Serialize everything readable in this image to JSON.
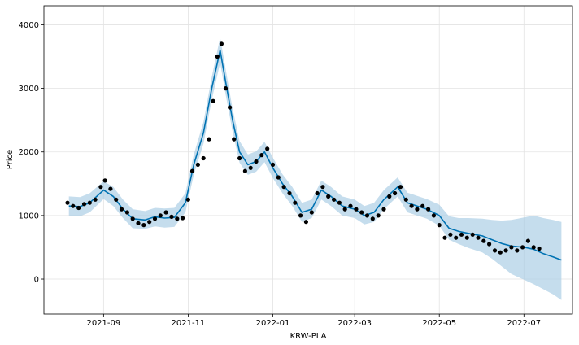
{
  "chart_data": {
    "type": "line",
    "xlabel": "KRW-PLA",
    "ylabel": "Price",
    "x_range": [
      "2021-07-20",
      "2022-08-05"
    ],
    "ylim": [
      -550,
      4300
    ],
    "x_ticks": [
      {
        "date": "2021-09-01",
        "label": "2021-09"
      },
      {
        "date": "2021-11-01",
        "label": "2021-11"
      },
      {
        "date": "2022-01-01",
        "label": "2022-01"
      },
      {
        "date": "2022-03-01",
        "label": "2022-03"
      },
      {
        "date": "2022-05-01",
        "label": "2022-05"
      },
      {
        "date": "2022-07-01",
        "label": "2022-07"
      }
    ],
    "y_ticks": [
      0,
      1000,
      2000,
      3000,
      4000
    ],
    "grid": true,
    "colors": {
      "observed": "#000000",
      "forecast": "#0072b2",
      "interval": "#a6cbe3"
    },
    "series": [
      {
        "kind": "forecast",
        "x": [
          "2021-08-07",
          "2021-08-15",
          "2021-08-22",
          "2021-09-01",
          "2021-09-08",
          "2021-09-15",
          "2021-09-22",
          "2021-10-01",
          "2021-10-08",
          "2021-10-15",
          "2021-10-22",
          "2021-10-30",
          "2021-11-05",
          "2021-11-12",
          "2021-11-18",
          "2021-11-24",
          "2021-11-28",
          "2021-12-03",
          "2021-12-08",
          "2021-12-14",
          "2021-12-20",
          "2021-12-26",
          "2022-01-01",
          "2022-01-08",
          "2022-01-15",
          "2022-01-22",
          "2022-01-29",
          "2022-02-05",
          "2022-02-12",
          "2022-02-20",
          "2022-03-01",
          "2022-03-08",
          "2022-03-15",
          "2022-03-22",
          "2022-04-01",
          "2022-04-08",
          "2022-04-15",
          "2022-04-22",
          "2022-05-01",
          "2022-05-08",
          "2022-05-15",
          "2022-05-22",
          "2022-06-01",
          "2022-06-08",
          "2022-06-15",
          "2022-06-22",
          "2022-07-01",
          "2022-07-08",
          "2022-07-15",
          "2022-07-22",
          "2022-07-28"
        ],
        "y": [
          1150,
          1140,
          1200,
          1400,
          1300,
          1100,
          950,
          930,
          980,
          960,
          970,
          1200,
          1800,
          2300,
          3000,
          3600,
          3100,
          2500,
          2000,
          1800,
          1850,
          2000,
          1750,
          1500,
          1300,
          1050,
          1100,
          1400,
          1300,
          1150,
          1100,
          1000,
          1050,
          1250,
          1450,
          1200,
          1150,
          1100,
          1000,
          800,
          750,
          720,
          680,
          620,
          560,
          520,
          500,
          470,
          400,
          350,
          300
        ]
      },
      {
        "kind": "uncertainty-interval",
        "x": [
          "2021-08-07",
          "2021-08-15",
          "2021-08-22",
          "2021-09-01",
          "2021-09-08",
          "2021-09-15",
          "2021-09-22",
          "2021-10-01",
          "2021-10-08",
          "2021-10-15",
          "2021-10-22",
          "2021-10-30",
          "2021-11-05",
          "2021-11-12",
          "2021-11-18",
          "2021-11-24",
          "2021-11-28",
          "2021-12-03",
          "2021-12-08",
          "2021-12-14",
          "2021-12-20",
          "2021-12-26",
          "2022-01-01",
          "2022-01-08",
          "2022-01-15",
          "2022-01-22",
          "2022-01-29",
          "2022-02-05",
          "2022-02-12",
          "2022-02-20",
          "2022-03-01",
          "2022-03-08",
          "2022-03-15",
          "2022-03-22",
          "2022-04-01",
          "2022-04-08",
          "2022-04-15",
          "2022-04-22",
          "2022-05-01",
          "2022-05-08",
          "2022-05-15",
          "2022-05-22",
          "2022-06-01",
          "2022-06-08",
          "2022-06-15",
          "2022-06-22",
          "2022-07-01",
          "2022-07-08",
          "2022-07-15",
          "2022-07-22",
          "2022-07-28"
        ],
        "lower": [
          1000,
          990,
          1050,
          1260,
          1150,
          960,
          800,
          790,
          830,
          810,
          820,
          1050,
          1640,
          2130,
          2820,
          3400,
          2900,
          2320,
          1830,
          1640,
          1690,
          1840,
          1590,
          1350,
          1150,
          900,
          960,
          1250,
          1150,
          1000,
          960,
          860,
          900,
          1100,
          1300,
          1050,
          1000,
          950,
          840,
          620,
          550,
          490,
          420,
          320,
          200,
          80,
          -10,
          -80,
          -160,
          -240,
          -330
        ],
        "upper": [
          1300,
          1290,
          1350,
          1540,
          1450,
          1250,
          1100,
          1070,
          1120,
          1110,
          1120,
          1350,
          1960,
          2470,
          3180,
          3800,
          3300,
          2680,
          2170,
          1960,
          2010,
          2160,
          1910,
          1650,
          1450,
          1200,
          1250,
          1550,
          1450,
          1300,
          1250,
          1150,
          1200,
          1400,
          1600,
          1360,
          1310,
          1260,
          1170,
          990,
          960,
          960,
          950,
          930,
          920,
          930,
          970,
          1000,
          960,
          930,
          900
        ]
      },
      {
        "kind": "observed",
        "x": [
          "2021-08-06",
          "2021-08-10",
          "2021-08-14",
          "2021-08-18",
          "2021-08-22",
          "2021-08-26",
          "2021-08-30",
          "2021-09-02",
          "2021-09-06",
          "2021-09-10",
          "2021-09-14",
          "2021-09-18",
          "2021-09-22",
          "2021-09-26",
          "2021-09-30",
          "2021-10-04",
          "2021-10-08",
          "2021-10-12",
          "2021-10-16",
          "2021-10-20",
          "2021-10-24",
          "2021-10-28",
          "2021-11-01",
          "2021-11-04",
          "2021-11-08",
          "2021-11-12",
          "2021-11-16",
          "2021-11-19",
          "2021-11-22",
          "2021-11-25",
          "2021-11-28",
          "2021-12-01",
          "2021-12-04",
          "2021-12-08",
          "2021-12-12",
          "2021-12-16",
          "2021-12-20",
          "2021-12-24",
          "2021-12-28",
          "2022-01-01",
          "2022-01-05",
          "2022-01-09",
          "2022-01-13",
          "2022-01-17",
          "2022-01-21",
          "2022-01-25",
          "2022-01-29",
          "2022-02-02",
          "2022-02-06",
          "2022-02-10",
          "2022-02-14",
          "2022-02-18",
          "2022-02-22",
          "2022-02-26",
          "2022-03-02",
          "2022-03-06",
          "2022-03-10",
          "2022-03-14",
          "2022-03-18",
          "2022-03-22",
          "2022-03-26",
          "2022-03-30",
          "2022-04-03",
          "2022-04-07",
          "2022-04-11",
          "2022-04-15",
          "2022-04-19",
          "2022-04-23",
          "2022-04-27",
          "2022-05-01",
          "2022-05-05",
          "2022-05-09",
          "2022-05-13",
          "2022-05-17",
          "2022-05-21",
          "2022-05-25",
          "2022-05-29",
          "2022-06-02",
          "2022-06-06",
          "2022-06-10",
          "2022-06-14",
          "2022-06-18",
          "2022-06-22",
          "2022-06-26",
          "2022-06-30",
          "2022-07-04",
          "2022-07-08",
          "2022-07-12"
        ],
        "y": [
          1200,
          1150,
          1120,
          1180,
          1200,
          1250,
          1450,
          1550,
          1420,
          1250,
          1100,
          1050,
          950,
          880,
          850,
          900,
          950,
          1000,
          1050,
          980,
          950,
          960,
          1250,
          1700,
          1800,
          1900,
          2200,
          2800,
          3500,
          3700,
          3000,
          2700,
          2200,
          1900,
          1700,
          1750,
          1850,
          1950,
          2050,
          1800,
          1600,
          1450,
          1350,
          1200,
          1000,
          900,
          1050,
          1350,
          1450,
          1300,
          1250,
          1200,
          1100,
          1150,
          1100,
          1050,
          1000,
          950,
          1000,
          1100,
          1300,
          1350,
          1450,
          1250,
          1150,
          1100,
          1150,
          1100,
          1000,
          850,
          650,
          700,
          650,
          700,
          650,
          700,
          650,
          600,
          550,
          450,
          420,
          450,
          500,
          450,
          500,
          600,
          500,
          480
        ]
      }
    ]
  }
}
